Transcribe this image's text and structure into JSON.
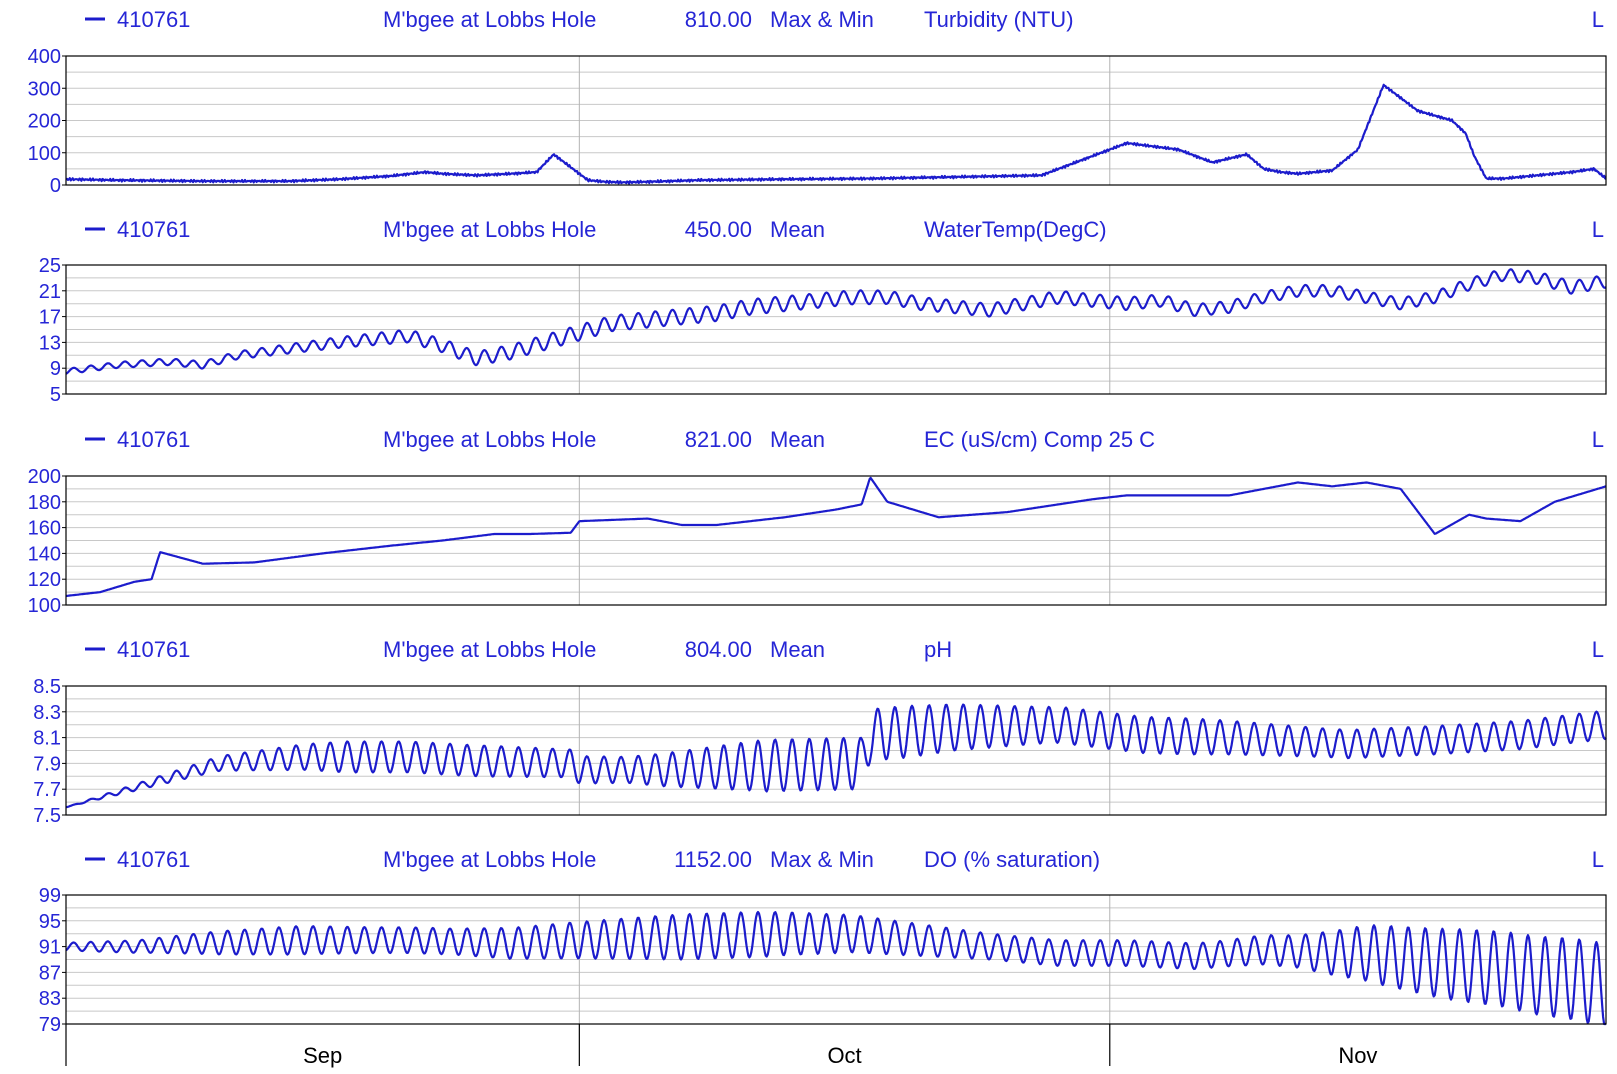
{
  "theme": {
    "series_color": "#1c1ccc",
    "label_color": "#2626d6",
    "axis_color": "#000000",
    "grid_color": "#c8c8c8",
    "month_grid_color": "#b4b4b4"
  },
  "chart_data": [
    {
      "type": "line",
      "station": "410761",
      "site": "M'bgee at Lobbs Hole",
      "code": "810.00",
      "stat": "Max & Min",
      "variable": "Turbidity (NTU)",
      "flag": "L",
      "ylim": [
        0,
        400
      ],
      "yticks": [
        0,
        100,
        200,
        300,
        400
      ],
      "grid_step": 50,
      "x_range_days": [
        0,
        90
      ],
      "series": [
        {
          "x": [
            0,
            3,
            8,
            13,
            16,
            19,
            21,
            22,
            24,
            26,
            27.5,
            28.5,
            29.5,
            30.5,
            31.5,
            32.5,
            34,
            37,
            42,
            47,
            52,
            57,
            59,
            62,
            65,
            67,
            69,
            70,
            71,
            72,
            74,
            75.5,
            77,
            79,
            81,
            81.8,
            82.3,
            83,
            84,
            86,
            88,
            89.3,
            90
          ],
          "values": [
            18,
            15,
            12,
            12,
            18,
            28,
            40,
            35,
            30,
            35,
            40,
            95,
            55,
            15,
            10,
            8,
            10,
            15,
            18,
            20,
            25,
            30,
            70,
            130,
            110,
            70,
            95,
            50,
            40,
            35,
            45,
            110,
            310,
            230,
            200,
            160,
            90,
            20,
            20,
            30,
            40,
            50,
            20
          ]
        }
      ]
    },
    {
      "type": "line",
      "station": "410761",
      "site": "M'bgee at Lobbs Hole",
      "code": "450.00",
      "stat": "Mean",
      "variable": "WaterTemp(DegC)",
      "flag": "L",
      "ylim": [
        5,
        25
      ],
      "yticks": [
        5,
        9,
        13,
        17,
        21,
        25
      ],
      "grid_step": 2,
      "x_range_days": [
        0,
        90
      ],
      "series": [
        {
          "x": [
            0,
            3,
            6,
            8,
            10,
            13,
            16,
            18,
            20,
            22,
            24,
            26,
            28,
            30,
            32,
            34,
            36,
            38,
            40,
            42,
            44,
            46,
            48,
            50,
            52,
            54,
            56,
            58,
            60,
            62,
            64,
            66,
            68,
            70,
            72,
            74,
            76,
            78,
            80,
            82,
            84,
            86,
            88,
            90
          ],
          "values": [
            8.5,
            9.5,
            10,
            9.5,
            11,
            12,
            13,
            13.5,
            14,
            12.5,
            10.5,
            11.5,
            13,
            14.5,
            16,
            16.5,
            17,
            17.5,
            18.5,
            19,
            19.5,
            20,
            20,
            19,
            18.5,
            18,
            19,
            20,
            19.5,
            19,
            19.5,
            18,
            18.5,
            20,
            21,
            21,
            20,
            19,
            20,
            22,
            23.5,
            23,
            21.5,
            22.5
          ]
        }
      ],
      "diurnal_amplitude": [
        0.4,
        0.6,
        1.0,
        1.2,
        1.2,
        1.0,
        1.0,
        0.9,
        0.9,
        1.0
      ]
    },
    {
      "type": "line",
      "station": "410761",
      "site": "M'bgee at Lobbs Hole",
      "code": "821.00",
      "stat": "Mean",
      "variable": "EC (uS/cm) Comp 25 C",
      "flag": "L",
      "ylim": [
        100,
        200
      ],
      "yticks": [
        100,
        120,
        140,
        160,
        180,
        200
      ],
      "grid_step": 10,
      "x_range_days": [
        0,
        90
      ],
      "series": [
        {
          "x": [
            0,
            2,
            4,
            5,
            5.5,
            8,
            11,
            15,
            19,
            22,
            25,
            27,
            29.5,
            30,
            34,
            36,
            38,
            42,
            45,
            46.5,
            47,
            48,
            51,
            55,
            60,
            62,
            65,
            68,
            70,
            72,
            74,
            76,
            78,
            80,
            82,
            83,
            85,
            87,
            90
          ],
          "values": [
            107,
            110,
            118,
            120,
            141,
            132,
            133,
            140,
            146,
            150,
            155,
            155,
            156,
            165,
            167,
            162,
            162,
            168,
            174,
            178,
            199,
            180,
            168,
            172,
            182,
            185,
            185,
            185,
            190,
            195,
            192,
            195,
            190,
            155,
            170,
            167,
            165,
            180,
            192
          ]
        }
      ]
    },
    {
      "type": "line",
      "station": "410761",
      "site": "M'bgee at Lobbs Hole",
      "code": "804.00",
      "stat": "Mean",
      "variable": "pH",
      "flag": "L",
      "ylim": [
        7.5,
        8.5
      ],
      "yticks": [
        7.5,
        7.7,
        7.9,
        8.1,
        8.3,
        8.5
      ],
      "grid_step": 0.1,
      "x_range_days": [
        0,
        90
      ],
      "series": [
        {
          "x": [
            0,
            5,
            9,
            14,
            20,
            24,
            29.5,
            30,
            35,
            40,
            46.5,
            47,
            52,
            58,
            63,
            68,
            75,
            80,
            85,
            90
          ],
          "values": [
            7.56,
            7.75,
            7.9,
            7.95,
            7.95,
            7.92,
            7.9,
            7.85,
            7.85,
            7.88,
            7.9,
            8.12,
            8.18,
            8.2,
            8.12,
            8.1,
            8.05,
            8.08,
            8.12,
            8.2
          ]
        }
      ],
      "diurnal_amplitude": [
        0.0,
        0.05,
        0.12,
        0.12,
        0.1,
        0.2,
        0.2,
        0.14,
        0.14,
        0.11,
        0.11,
        0.11
      ]
    },
    {
      "type": "line",
      "station": "410761",
      "site": "M'bgee at Lobbs Hole",
      "code": "1152.00",
      "stat": "Max & Min",
      "variable": "DO (% saturation)",
      "flag": "L",
      "ylim": [
        79,
        99
      ],
      "yticks": [
        79,
        83,
        87,
        91,
        95,
        99
      ],
      "grid_step": 2,
      "x_range_days": [
        0,
        90
      ],
      "series": [
        {
          "x": [
            0,
            4,
            8,
            14,
            20,
            26,
            30,
            36,
            42,
            46,
            50,
            54,
            58,
            62,
            66,
            70,
            74,
            76,
            80,
            84,
            86,
            88,
            90
          ],
          "values": [
            91,
            91,
            91.5,
            92,
            92,
            91.5,
            92,
            92.5,
            93,
            93,
            92,
            91,
            90,
            90,
            89.5,
            90.5,
            90,
            90,
            88.5,
            87.5,
            86.5,
            86,
            85
          ]
        }
      ],
      "diurnal_amplitude": [
        0.6,
        1.0,
        1.8,
        2.2,
        2.0,
        2.0,
        2.5,
        3.0,
        3.5,
        3.5,
        3.0,
        2.5,
        2.0,
        2.0,
        2.0,
        2.0,
        2.5,
        4.5,
        5.5,
        6.0,
        6.5
      ]
    }
  ],
  "x_axis": {
    "months": [
      {
        "label": "Sep",
        "start_day": 0,
        "end_day": 30
      },
      {
        "label": "Oct",
        "start_day": 30,
        "end_day": 61
      },
      {
        "label": "Nov",
        "start_day": 61,
        "end_day": 90
      }
    ]
  }
}
